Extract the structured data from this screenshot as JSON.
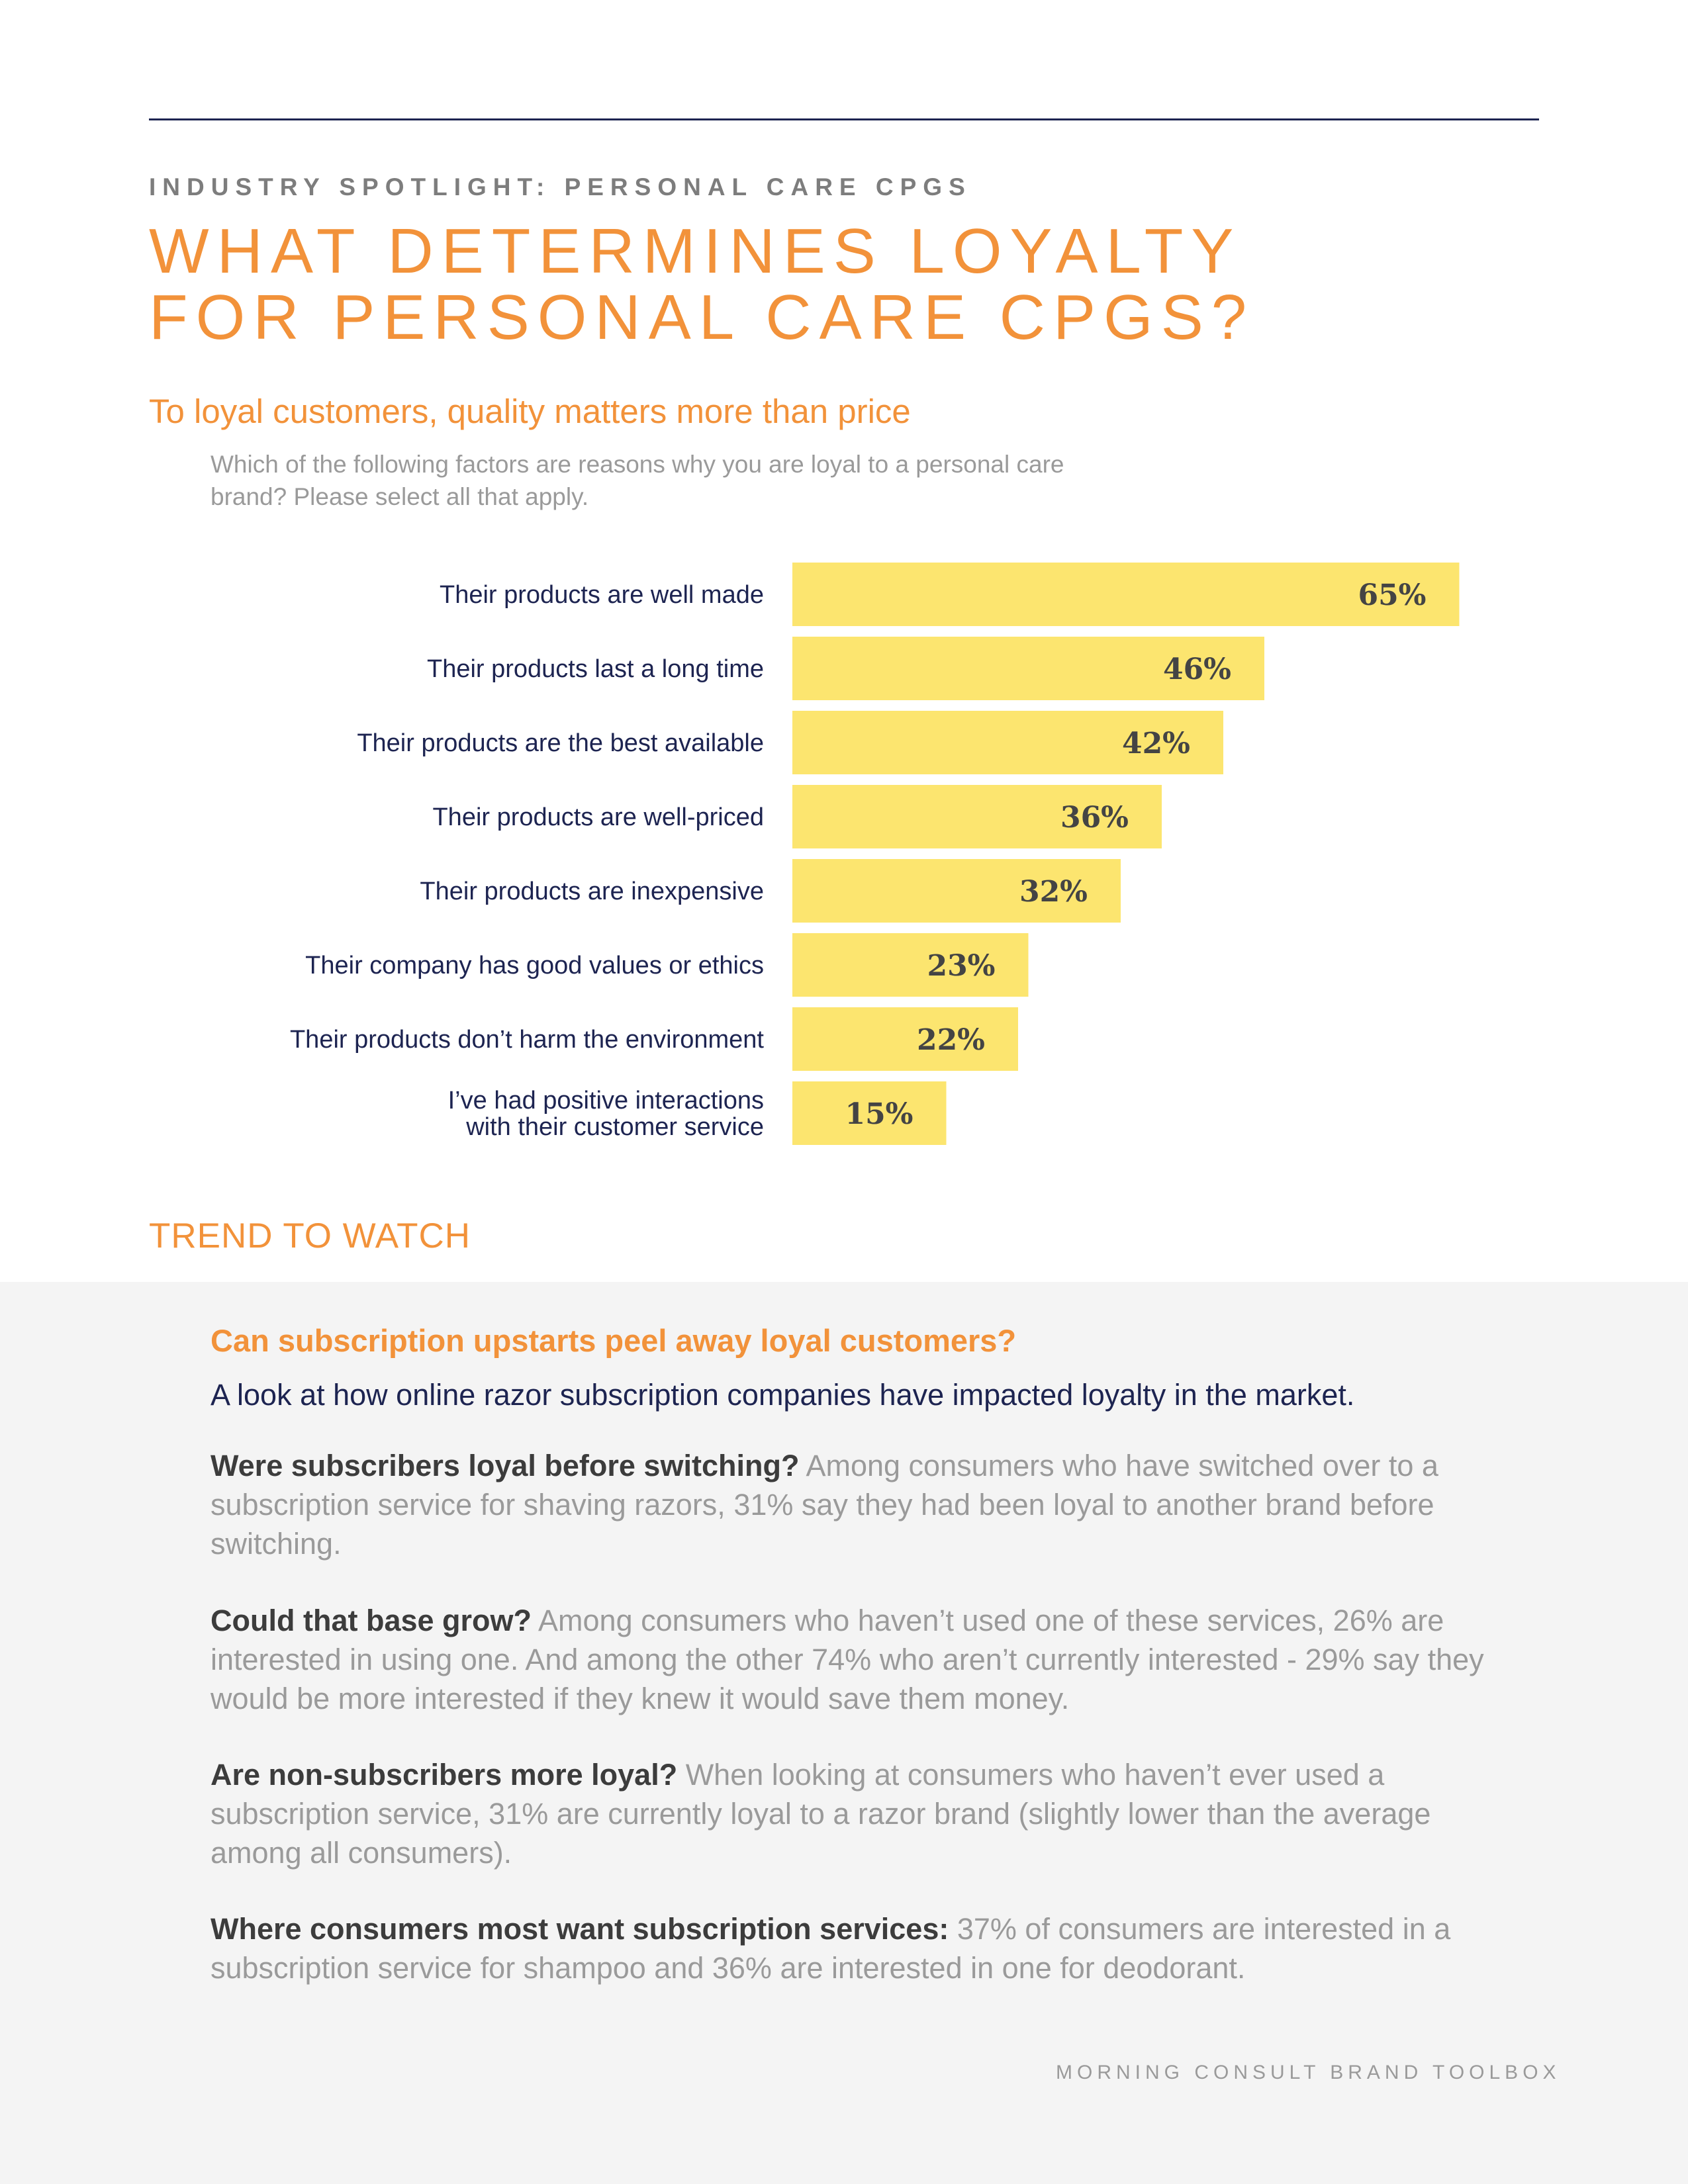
{
  "header": {
    "kicker": "INDUSTRY SPOTLIGHT: PERSONAL CARE CPGS",
    "title_line1": "WHAT DETERMINES LOYALTY",
    "title_line2": "FOR PERSONAL CARE CPGS?"
  },
  "section": {
    "subtitle": "To loyal customers, quality matters more than price",
    "question": "Which of the following factors are reasons why you are loyal to a personal care brand? Please select all that apply."
  },
  "chart_data": {
    "type": "bar",
    "orientation": "horizontal",
    "categories": [
      [
        "Their products are well made"
      ],
      [
        "Their products last a long time"
      ],
      [
        "Their products are the best available"
      ],
      [
        "Their products are well-priced"
      ],
      [
        "Their products are inexpensive"
      ],
      [
        "Their company has good values or ethics"
      ],
      [
        "Their products don’t harm the environment"
      ],
      [
        "I’ve had positive interactions",
        "with their customer service"
      ]
    ],
    "values": [
      65,
      46,
      42,
      36,
      32,
      23,
      22,
      15
    ],
    "value_labels": [
      "65%",
      "46%",
      "42%",
      "36%",
      "32%",
      "23%",
      "22%",
      "15%"
    ],
    "unit": "%",
    "xlim": [
      0,
      100
    ],
    "colors": {
      "bar": "#fce56f",
      "label": "#1d2451",
      "value": "#444444"
    }
  },
  "trend": {
    "heading": "TREND TO WATCH",
    "panel_title": "Can subscription upstarts peel away loyal customers?",
    "intro": "A look at how online razor subscription companies have impacted loyalty in the market.",
    "paragraphs": [
      {
        "lead": "Were subscribers loyal before switching?",
        "body": " Among consumers who have switched over to a subscription service for shaving razors, 31% say they had been loyal to another brand before switching."
      },
      {
        "lead": "Could that base grow?",
        "body": " Among consumers who haven’t used one of these services, 26% are interested in using one. And among the other 74% who aren’t currently interested - 29% say they would be more interested if they knew it would save them money."
      },
      {
        "lead": "Are non-subscribers more loyal?",
        "body": " When looking at consumers who haven’t ever used a subscription service, 31% are currently loyal to a razor brand (slightly lower than the average among all consumers)."
      },
      {
        "lead": "Where consumers most want subscription services:",
        "body": " 37% of consumers are interested in a subscription service for shampoo and 36% are interested in one for deodorant."
      }
    ]
  },
  "footer": {
    "text": "MORNING CONSULT BRAND TOOLBOX"
  },
  "colors": {
    "accent": "#f2923a",
    "navy": "#1d2451",
    "gray": "#9a9a9a"
  }
}
